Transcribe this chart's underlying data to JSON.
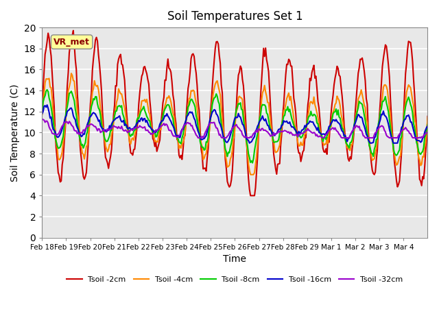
{
  "title": "Soil Temperatures Set 1",
  "xlabel": "Time",
  "ylabel": "Soil Temperature (C)",
  "ylim": [
    0,
    20
  ],
  "yticks": [
    0,
    2,
    4,
    6,
    8,
    10,
    12,
    14,
    16,
    18,
    20
  ],
  "background_color": "#e8e8e8",
  "annotation_text": "VR_met",
  "annotation_color": "#8b0000",
  "annotation_bg": "#ffff99",
  "lines": {
    "Tsoil -2cm": {
      "color": "#cc0000",
      "lw": 1.5
    },
    "Tsoil -4cm": {
      "color": "#ff8800",
      "lw": 1.5
    },
    "Tsoil -8cm": {
      "color": "#00cc00",
      "lw": 1.5
    },
    "Tsoil -16cm": {
      "color": "#0000cc",
      "lw": 1.5
    },
    "Tsoil -32cm": {
      "color": "#9900cc",
      "lw": 1.5
    }
  },
  "n_points": 384,
  "xtick_labels": [
    "Feb 18",
    "Feb 19",
    "Feb 20",
    "Feb 21",
    "Feb 22",
    "Feb 23",
    "Feb 24",
    "Feb 25",
    "Feb 26",
    "Feb 27",
    "Feb 28",
    "Feb 29",
    "Mar 1",
    "Mar 2",
    "Mar 3",
    "Mar 4"
  ],
  "grid_color": "#ffffff",
  "fig_bg": "#ffffff"
}
